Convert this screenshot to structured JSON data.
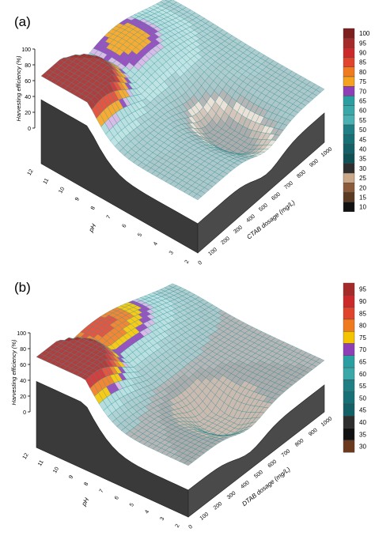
{
  "chart_data": [
    {
      "panel_label": "(a)",
      "type": "surface3d",
      "title": "",
      "zlabel": "Harvesting efficiency (%)",
      "xlabel": "CTAB dosage (mg/L)",
      "ylabel": "pH",
      "x_ticks": [
        "0",
        "100",
        "200",
        "300",
        "400",
        "500",
        "600",
        "700",
        "800",
        "900",
        "1000"
      ],
      "y_ticks": [
        "2",
        "3",
        "4",
        "5",
        "6",
        "7",
        "8",
        "9",
        "10",
        "11",
        "12"
      ],
      "z_ticks": [
        "0",
        "20",
        "40",
        "60",
        "80",
        "100"
      ],
      "xlim": [
        0,
        1000
      ],
      "ylim": [
        2,
        12
      ],
      "zlim": [
        0,
        100
      ],
      "legend_levels": [
        "100",
        "95",
        "90",
        "85",
        "80",
        "75",
        "70",
        "65",
        "60",
        "55",
        "50",
        "45",
        "40",
        "35",
        "30",
        "25",
        "20",
        "15",
        "10"
      ],
      "legend_colors": [
        "#7b1f1f",
        "#a52a2a",
        "#cc2a2a",
        "#e0442c",
        "#f07a1e",
        "#f5a21e",
        "#8e3fb8",
        "#2a9ea0",
        "#3aa7a9",
        "#4ab0b2",
        "#1f7f84",
        "#177075",
        "#136066",
        "#0f5055",
        "#2e2e2e",
        "#c9a98a",
        "#8a5a3a",
        "#5a3a22",
        "#111111"
      ],
      "legend_position": "right"
    },
    {
      "panel_label": "(b)",
      "type": "surface3d",
      "title": "",
      "zlabel": "Harvesting efficiency (%)",
      "xlabel": "DTAB dosage (mg/L)",
      "ylabel": "pH",
      "x_ticks": [
        "0",
        "100",
        "200",
        "300",
        "400",
        "500",
        "600",
        "700",
        "800",
        "900",
        "1000"
      ],
      "y_ticks": [
        "2",
        "3",
        "4",
        "5",
        "6",
        "7",
        "8",
        "9",
        "10",
        "11",
        "12"
      ],
      "z_ticks": [
        "0",
        "20",
        "40",
        "60",
        "80",
        "100"
      ],
      "xlim": [
        0,
        1000
      ],
      "ylim": [
        2,
        12
      ],
      "zlim": [
        0,
        100
      ],
      "legend_levels": [
        "95",
        "90",
        "85",
        "80",
        "75",
        "70",
        "65",
        "60",
        "55",
        "50",
        "45",
        "40",
        "35",
        "30"
      ],
      "legend_colors": [
        "#a52a2a",
        "#cc2a2a",
        "#e0442c",
        "#f07a1e",
        "#f5c400",
        "#8e3fb8",
        "#2a9ea0",
        "#3aa7a9",
        "#1f7f84",
        "#177075",
        "#136066",
        "#2e2e2e",
        "#111111",
        "#6b3a1e"
      ],
      "legend_position": "right"
    }
  ]
}
